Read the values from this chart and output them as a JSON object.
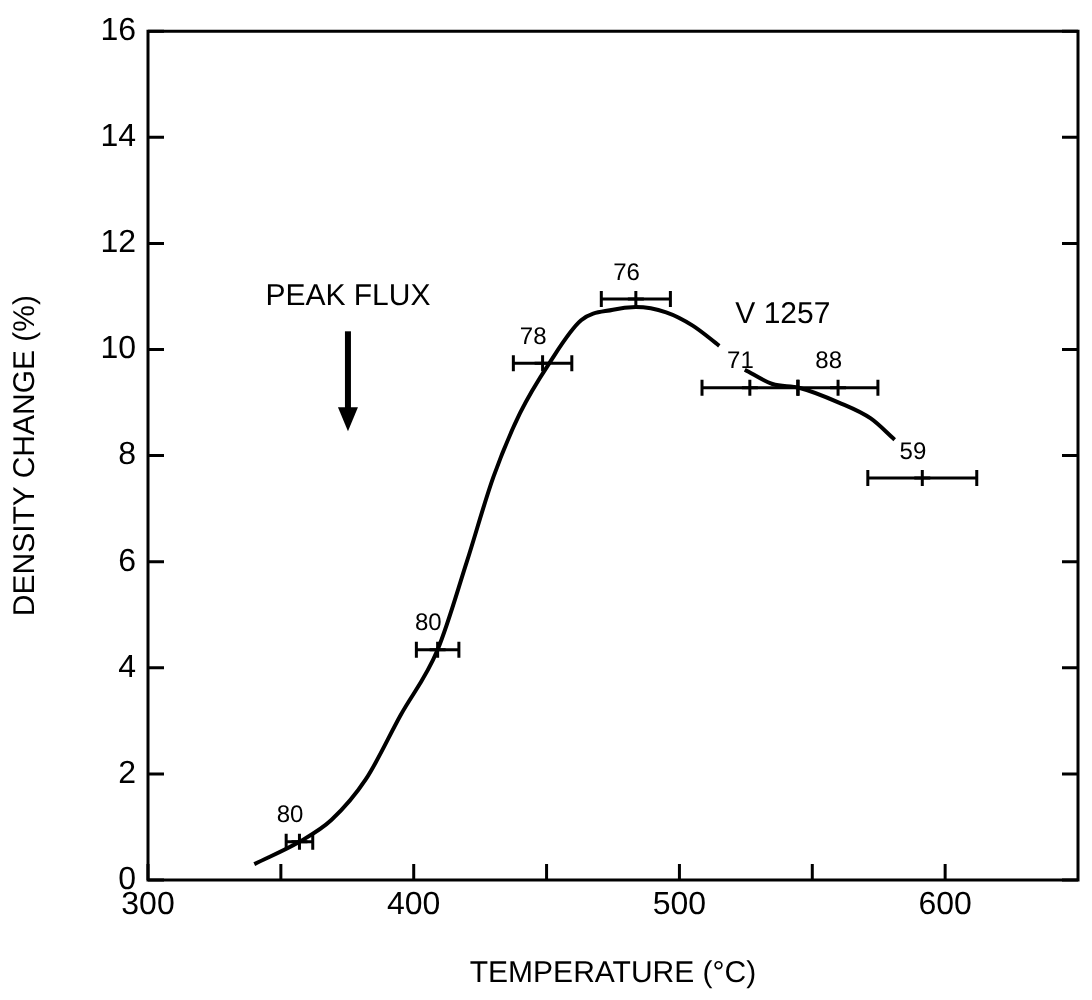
{
  "chart_data": {
    "type": "line",
    "xlabel": "TEMPERATURE (°C)",
    "ylabel": "DENSITY CHANGE (%)",
    "xlim": [
      300,
      650
    ],
    "xticks": [
      300,
      {
        "value": 350,
        "label": null
      },
      400,
      {
        "value": 450,
        "label": null
      },
      500,
      {
        "value": 550,
        "label": null
      },
      600
    ],
    "ylim": [
      0,
      16
    ],
    "yticks": [
      0,
      2,
      4,
      6,
      8,
      10,
      12,
      14,
      16
    ],
    "grid": false,
    "legend": false,
    "series": [
      {
        "color": "#000000",
        "marker": "none",
        "line_style": "solid",
        "x": [
          340,
          357,
          369,
          382,
          395,
          409,
          420,
          430,
          440,
          451,
          463,
          475,
          483.6,
          495,
          505,
          515,
          520,
          524.6,
          535,
          545,
          560,
          572,
          581
        ],
        "values": [
          0.3,
          0.72,
          1.13,
          1.9,
          3.1,
          4.34,
          6.0,
          7.6,
          8.8,
          9.74,
          10.55,
          10.75,
          10.8,
          10.7,
          10.45,
          10.07,
          null,
          9.62,
          9.35,
          9.28,
          9.0,
          8.7,
          8.3
        ]
      },
      {
        "type": "scatter",
        "color": "#000000",
        "marker": "cross",
        "x": [
          357,
          409,
          448.5,
          483.6,
          526.5,
          559.7,
          591.4
        ],
        "values": [
          0.72,
          4.34,
          9.74,
          10.95,
          9.28,
          9.28,
          7.58
        ],
        "xerrors": [
          5,
          8,
          11,
          13,
          18,
          15,
          20.5
        ]
      }
    ],
    "annotations": [
      {
        "text": "80",
        "x": 357,
        "y": 0.72
      },
      {
        "text": "80",
        "x": 409,
        "y": 4.34
      },
      {
        "text": "78",
        "x": 448.5,
        "y": 9.74
      },
      {
        "text": "76",
        "x": 483.6,
        "y": 10.95
      },
      {
        "text": "71",
        "x": 526.5,
        "y": 9.28
      },
      {
        "text": "88",
        "x": 559.7,
        "y": 9.28
      },
      {
        "text": "59",
        "x": 591.4,
        "y": 7.58
      },
      {
        "text": "V 1257",
        "x": 515,
        "y": 10.07
      },
      "PEAK FLUX"
    ]
  }
}
